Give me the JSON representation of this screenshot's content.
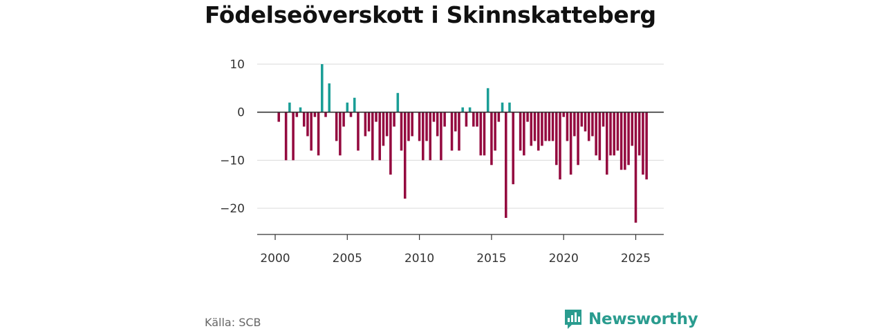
{
  "header": {
    "title": "Födelseöverskott i Skinnskatteberg"
  },
  "footer": {
    "source": "Källa: SCB",
    "brand": "Newsworthy"
  },
  "colors": {
    "positive": "#1a9e96",
    "negative": "#940a3f",
    "brand": "#2a9c8f"
  },
  "chart_data": {
    "type": "bar",
    "title": "Födelseöverskott i Skinnskatteberg",
    "xlabel": "",
    "ylabel": "",
    "frequency": "quarterly",
    "start": 2000.0,
    "ylim": [
      -25,
      12
    ],
    "xlim": [
      1998.5,
      2027
    ],
    "xticks": [
      2000,
      2005,
      2010,
      2015,
      2020,
      2025
    ],
    "xtick_labels": [
      "2000",
      "2005",
      "2010",
      "2015",
      "2020",
      "2025"
    ],
    "yticks": [
      10,
      0,
      -10,
      -20
    ],
    "ytick_labels": [
      "10",
      "0",
      "−10",
      "−20"
    ],
    "grid": true,
    "values": [
      0,
      -2,
      0,
      -10,
      2,
      -10,
      -1,
      1,
      -3,
      -5,
      -8,
      -1,
      -9,
      10,
      -1,
      6,
      0,
      -6,
      -9,
      -3,
      2,
      -1,
      3,
      -8,
      0,
      -5,
      -4,
      -10,
      -2,
      -10,
      -7,
      -5,
      -13,
      -3,
      4,
      -8,
      -18,
      -6,
      -5,
      0,
      -6,
      -10,
      -6,
      -10,
      -2,
      -5,
      -10,
      -3,
      0,
      -8,
      -4,
      -8,
      1,
      -3,
      1,
      -3,
      -3,
      -9,
      -9,
      5,
      -11,
      -8,
      -2,
      2,
      -22,
      2,
      -15,
      0,
      -8,
      -9,
      -2,
      -7,
      -6,
      -8,
      -7,
      -6,
      -6,
      -6,
      -11,
      -14,
      -1,
      -6,
      -13,
      -5,
      -11,
      -3,
      -4,
      -6,
      -5,
      -9,
      -10,
      -3,
      -13,
      -9,
      -9,
      -8,
      -12,
      -12,
      -11,
      -7,
      -23,
      -9,
      -13,
      -14
    ]
  }
}
